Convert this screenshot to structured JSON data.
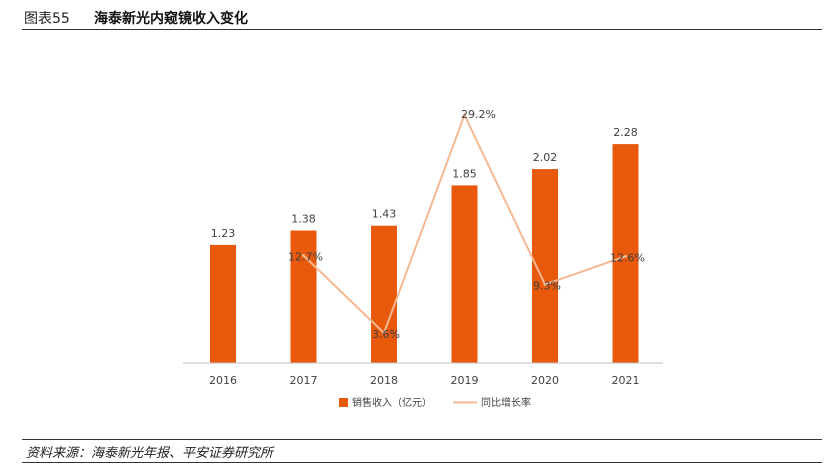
{
  "header": {
    "figure_no": "图表55",
    "title": "海泰新光内窥镜收入变化"
  },
  "footer": {
    "source": "资料来源：海泰新光年报、平安证券研究所"
  },
  "colors": {
    "bar": "#e8590c",
    "line": "#f5b891",
    "axis": "#bfbfbf",
    "text": "#404040"
  },
  "chart_data": {
    "type": "bar",
    "title": "海泰新光内窥镜收入变化",
    "categories": [
      "2016",
      "2017",
      "2018",
      "2019",
      "2020",
      "2021"
    ],
    "series": [
      {
        "name": "销售收入（亿元）",
        "type": "bar",
        "axis": "left",
        "values": [
          1.23,
          1.38,
          1.43,
          1.85,
          2.02,
          2.28
        ],
        "labels": [
          "1.23",
          "1.38",
          "1.43",
          "1.85",
          "2.02",
          "2.28"
        ]
      },
      {
        "name": "同比增长率",
        "type": "line",
        "axis": "right",
        "values": [
          null,
          12.7,
          3.6,
          29.2,
          9.3,
          12.6
        ],
        "labels": [
          "",
          "12.7%",
          "3.6%",
          "29.2%",
          "9.3%",
          "12.6%"
        ]
      }
    ],
    "ylim": [
      0,
      2.5
    ],
    "y2lim": [
      0,
      33
    ],
    "grid": false,
    "legend_position": "bottom"
  }
}
